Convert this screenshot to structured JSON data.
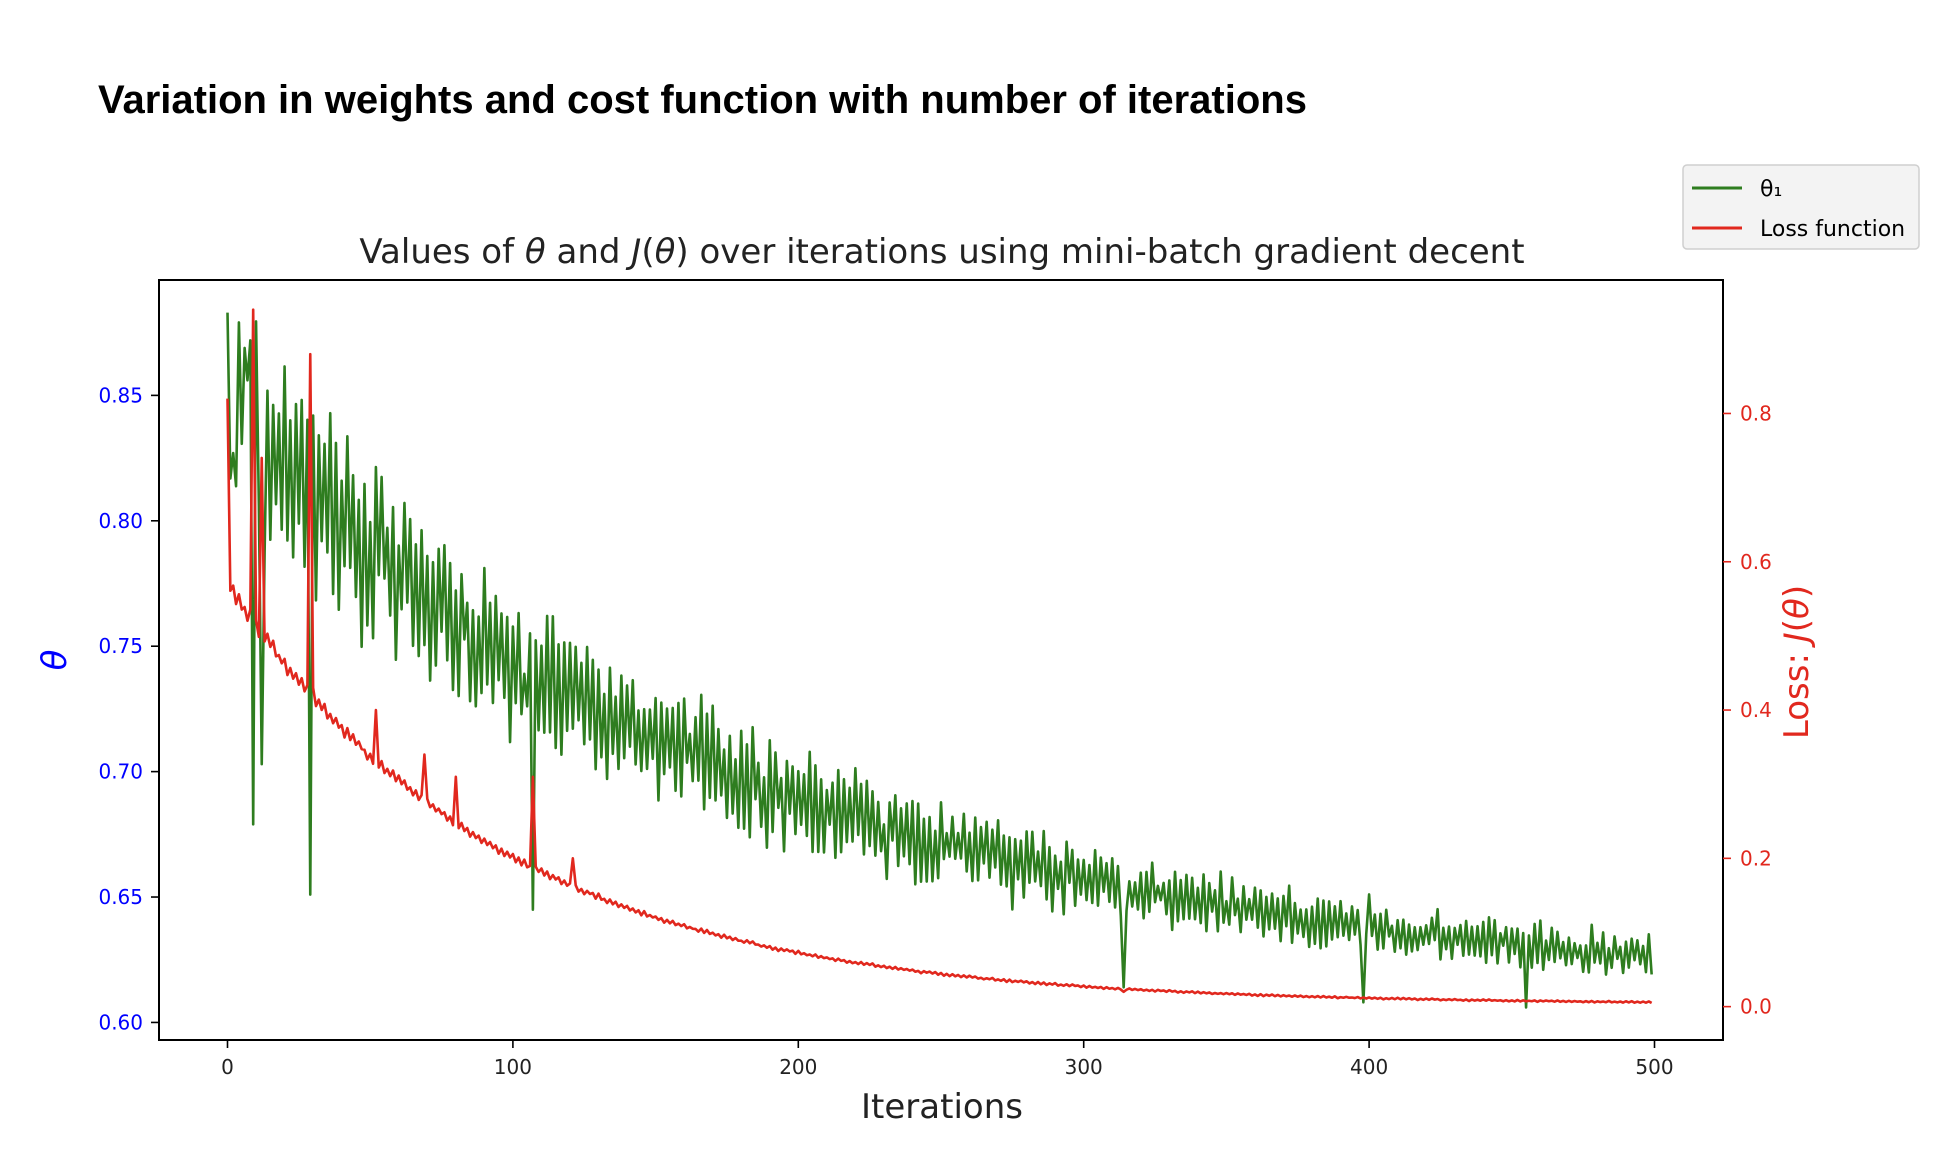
{
  "slide": {
    "title": "Variation in weights and cost function with number of iterations"
  },
  "chart_data": {
    "type": "line",
    "title": "Values of θ and J(θ) over iterations using mini-batch gradient decent",
    "xlabel": "Iterations",
    "ylabel_left": "θ",
    "ylabel_right": "Loss: J(θ)",
    "xlim": [
      -24,
      524
    ],
    "ylim_left": [
      0.593,
      0.896
    ],
    "ylim_right": [
      -0.045,
      0.98
    ],
    "xticks": [
      0,
      100,
      200,
      300,
      400,
      500
    ],
    "yticks_left": [
      0.6,
      0.65,
      0.7,
      0.75,
      0.8,
      0.85
    ],
    "yticks_right": [
      0.0,
      0.2,
      0.4,
      0.6,
      0.8
    ],
    "grid": false,
    "legend_position": "outside top-right",
    "colors": {
      "theta": "#2e7d1f",
      "loss": "#e1281e",
      "left_axis": "#0000ff",
      "right_axis": "#e1281e"
    },
    "series": [
      {
        "name": "θ₁",
        "axis": "left",
        "color": "#2e7d1f",
        "n_points": 500,
        "trend_start": 0.845,
        "trend_end": 0.612,
        "decay_rate": 0.0055,
        "noise_start": 0.045,
        "noise_end": 0.006,
        "spikes": [
          {
            "x": 0,
            "y": 0.883
          },
          {
            "x": 2,
            "y": 0.827
          },
          {
            "x": 7,
            "y": 0.856
          },
          {
            "x": 9,
            "y": 0.679
          },
          {
            "x": 12,
            "y": 0.703
          },
          {
            "x": 29,
            "y": 0.651
          },
          {
            "x": 40,
            "y": 0.816
          },
          {
            "x": 104,
            "y": 0.739
          },
          {
            "x": 107,
            "y": 0.645
          },
          {
            "x": 314,
            "y": 0.614
          },
          {
            "x": 398,
            "y": 0.608
          },
          {
            "x": 455,
            "y": 0.606
          }
        ]
      },
      {
        "name": "Loss function",
        "axis": "right",
        "color": "#e1281e",
        "n_points": 500,
        "trend_start": 0.57,
        "trend_end": 0.003,
        "decay_rate": 0.0105,
        "noise_start": 0.012,
        "noise_end": 0.001,
        "spikes": [
          {
            "x": 0,
            "y": 0.82
          },
          {
            "x": 9,
            "y": 0.94
          },
          {
            "x": 12,
            "y": 0.74
          },
          {
            "x": 29,
            "y": 0.88
          },
          {
            "x": 30,
            "y": 0.43
          },
          {
            "x": 52,
            "y": 0.4
          },
          {
            "x": 69,
            "y": 0.34
          },
          {
            "x": 80,
            "y": 0.31
          },
          {
            "x": 107,
            "y": 0.31
          },
          {
            "x": 121,
            "y": 0.2
          },
          {
            "x": 314,
            "y": 0.02
          }
        ]
      }
    ]
  }
}
